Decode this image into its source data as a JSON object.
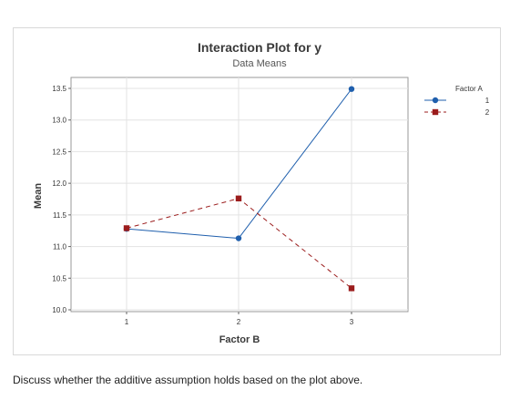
{
  "chart_data": {
    "type": "line",
    "title": "Interaction Plot for y",
    "subtitle": "Data Means",
    "xlabel": "Factor B",
    "ylabel": "Mean",
    "categories": [
      "1",
      "2",
      "3"
    ],
    "ylim": [
      10.0,
      13.5
    ],
    "yticks": [
      "10.0",
      "10.5",
      "11.0",
      "11.5",
      "12.0",
      "12.5",
      "13.0",
      "13.5"
    ],
    "grid": true,
    "legend": {
      "title": "Factor A",
      "placement": "right"
    },
    "series": [
      {
        "name": "1",
        "values": [
          11.28,
          11.13,
          13.49
        ],
        "color": "#1f5fad",
        "marker": "circle",
        "line": "solid"
      },
      {
        "name": "2",
        "values": [
          11.29,
          11.76,
          10.34
        ],
        "color": "#9b1c1c",
        "marker": "square",
        "line": "dashed"
      }
    ]
  },
  "question": "Discuss whether the additive assumption holds based on the plot above."
}
